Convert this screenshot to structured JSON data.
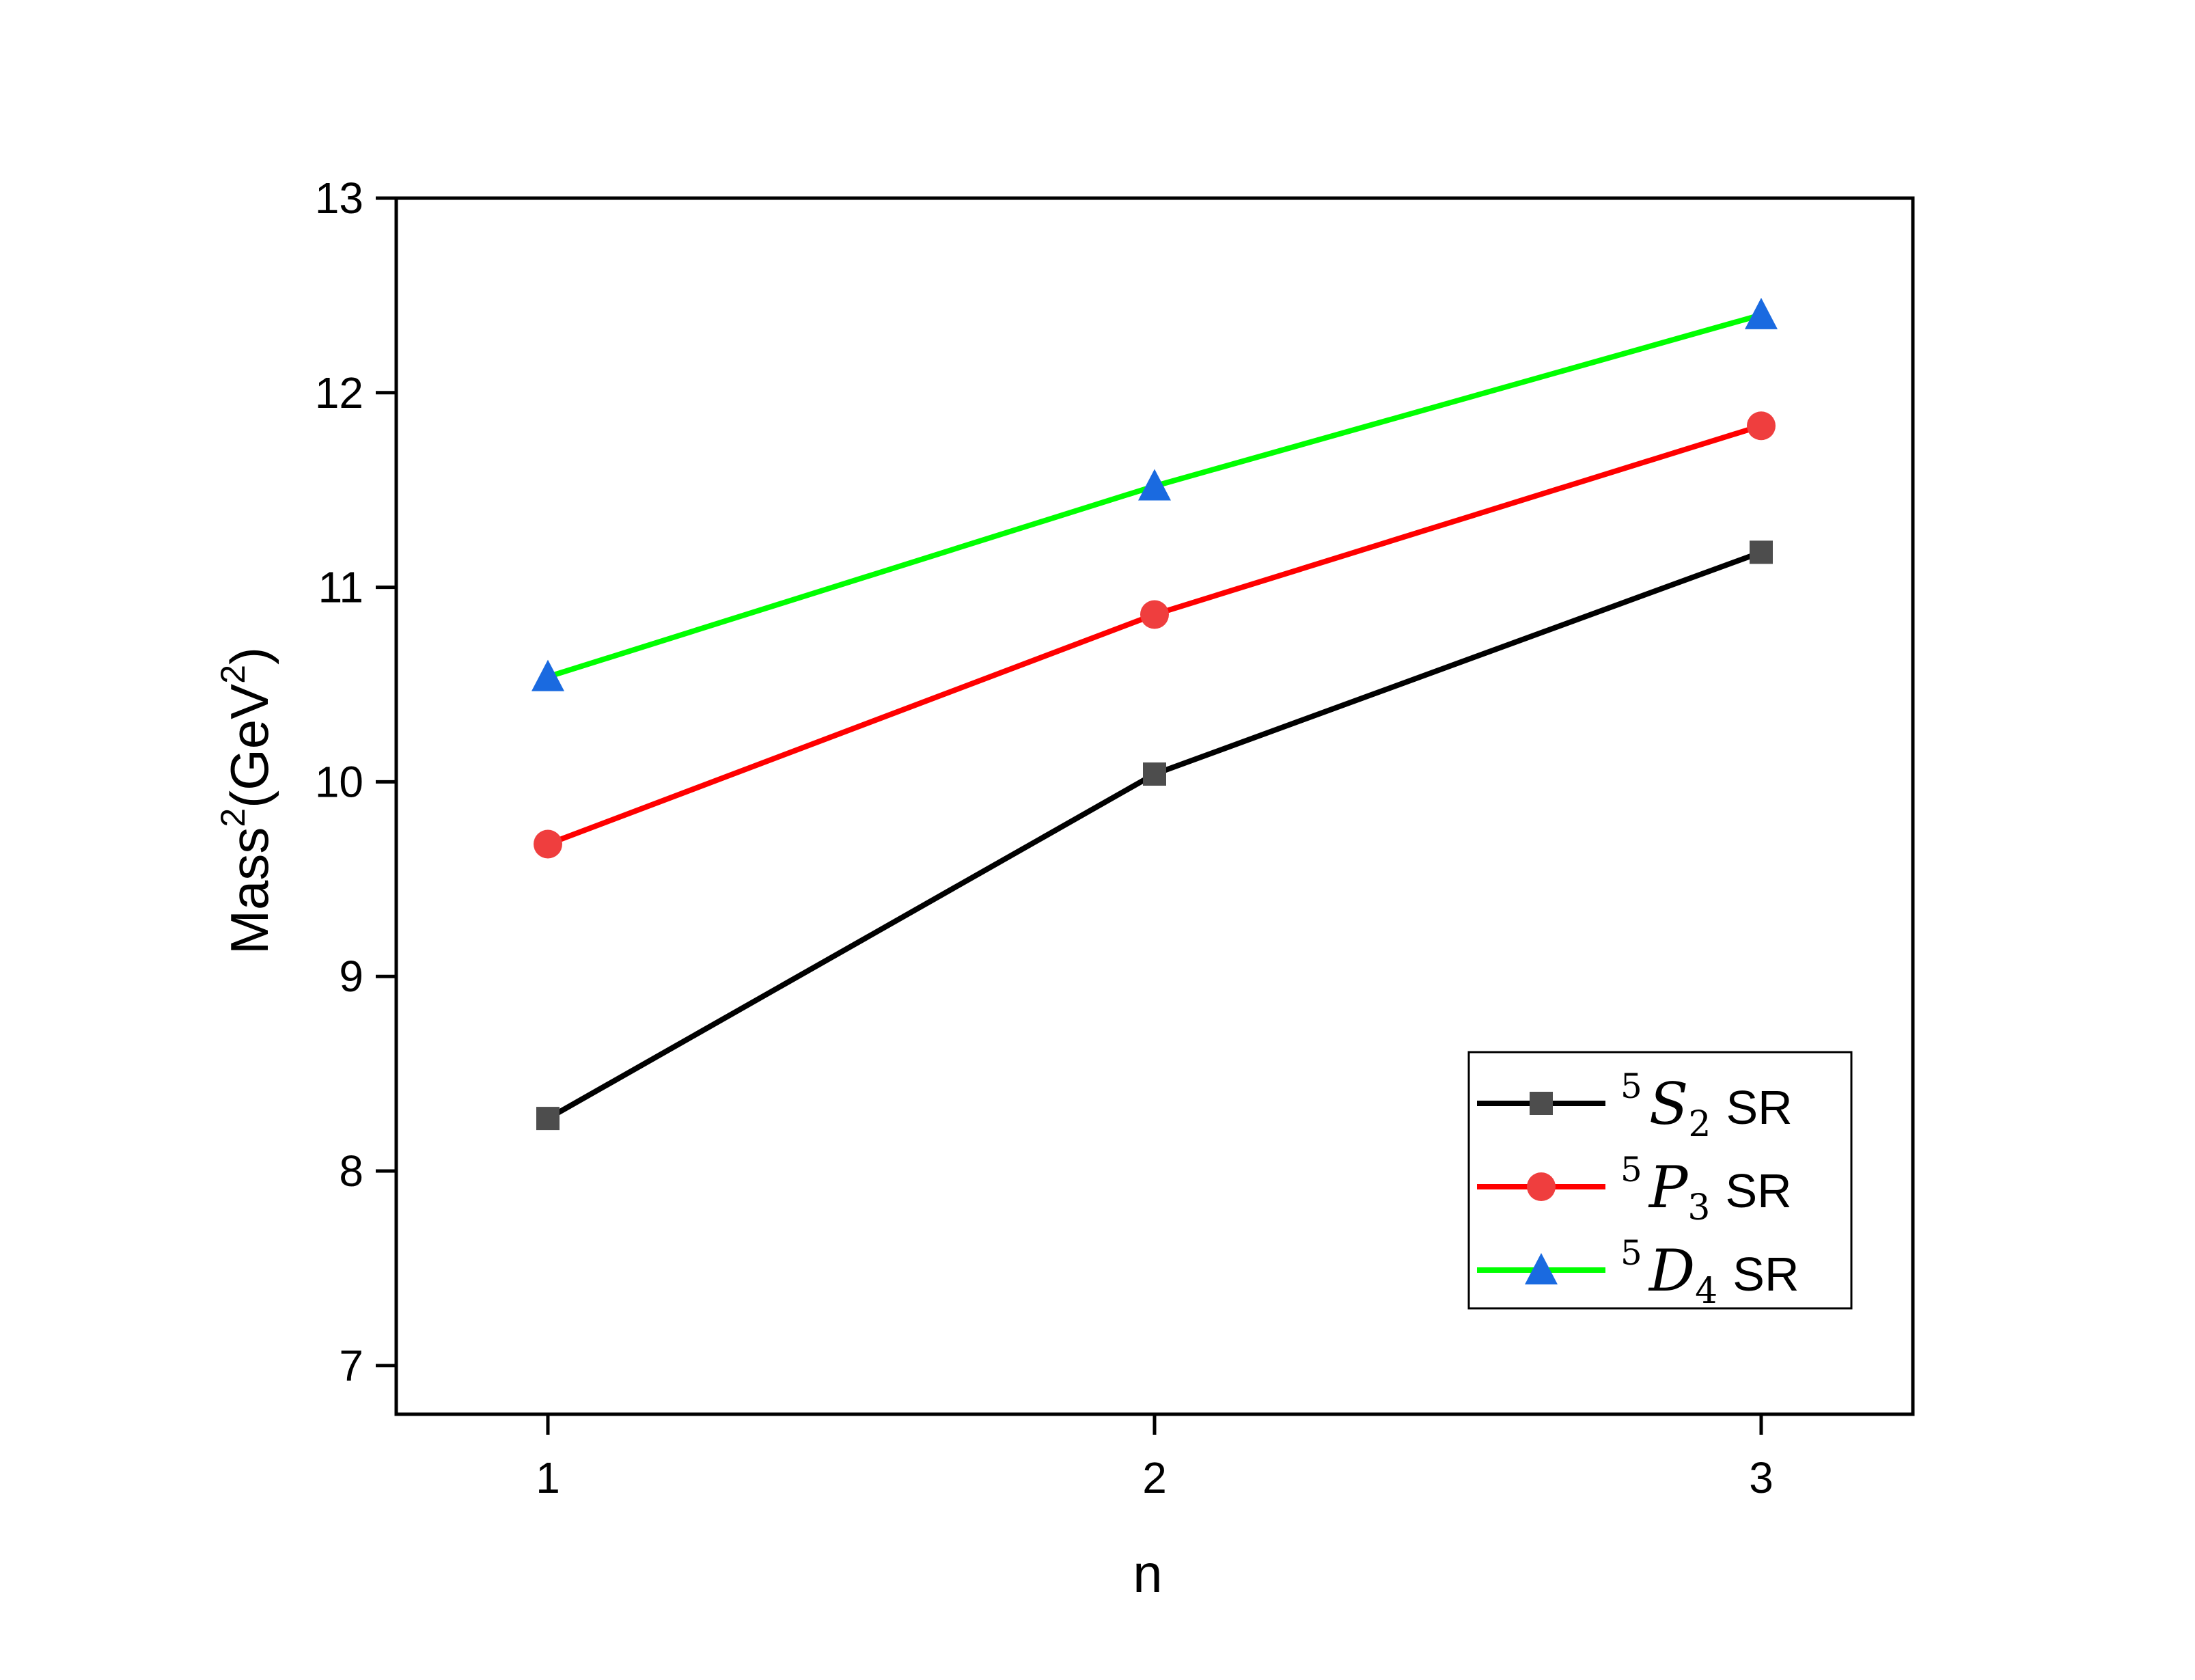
{
  "chart_data": {
    "type": "line",
    "title": "",
    "xlabel": "n",
    "ylabel": {
      "prefix": "Mass",
      "sup1": "2",
      "middle": "(GeV",
      "sup2": "2",
      "suffix": ")"
    },
    "x": [
      1,
      2,
      3
    ],
    "xlim": [
      0.75,
      3.25
    ],
    "ylim": [
      6.75,
      13
    ],
    "xticks": [
      "1",
      "2",
      "3"
    ],
    "yticks": [
      "7",
      "8",
      "9",
      "10",
      "11",
      "12",
      "13"
    ],
    "grid": false,
    "legend_position": "lower-right",
    "series": [
      {
        "name": "⁵S₂ SR",
        "label": {
          "sup": "5",
          "letter": "S",
          "sub": "2",
          "suffix": "SR"
        },
        "values": [
          8.27,
          10.04,
          11.18
        ],
        "line_color": "#000000",
        "marker": "square",
        "marker_color": "#4d4d4d"
      },
      {
        "name": "⁵P₃ SR",
        "label": {
          "sup": "5",
          "letter": "P",
          "sub": "3",
          "suffix": "SR"
        },
        "values": [
          9.68,
          10.86,
          11.83
        ],
        "line_color": "#ff0000",
        "marker": "circle",
        "marker_color": "#ef3e3e"
      },
      {
        "name": "⁵D₄ SR",
        "label": {
          "sup": "5",
          "letter": "D",
          "sub": "4",
          "suffix": "SR"
        },
        "values": [
          10.54,
          11.52,
          12.4
        ],
        "line_color": "#00ff00",
        "marker": "triangle",
        "marker_color": "#1a6ae0"
      }
    ]
  }
}
